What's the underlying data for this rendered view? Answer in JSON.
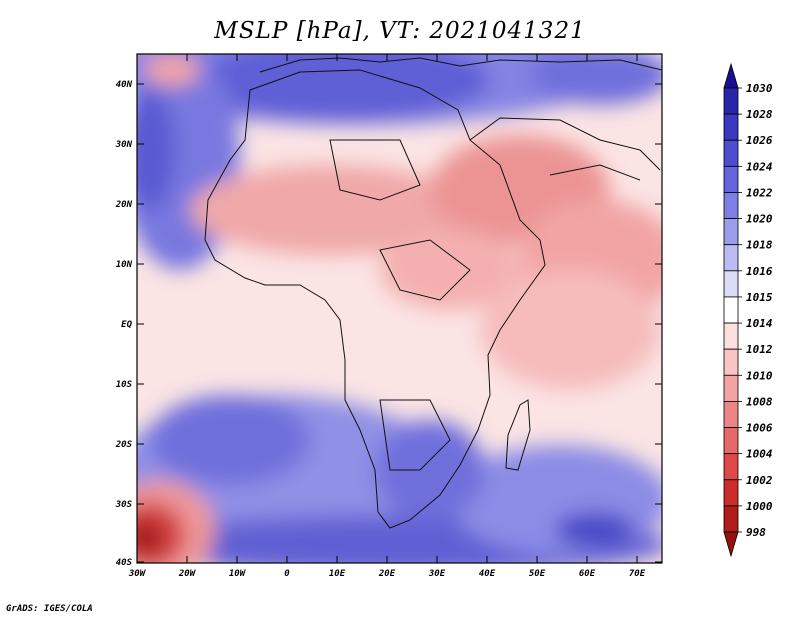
{
  "title": "MSLP [hPa], VT: 2021041321",
  "credit": "GrADS: IGES/COLA",
  "map": {
    "lat_labels": [
      "40N",
      "30N",
      "20N",
      "10N",
      "EQ",
      "10S",
      "20S",
      "30S",
      "40S"
    ],
    "lon_labels": [
      "30W",
      "20W",
      "10W",
      "0",
      "10E",
      "20E",
      "30E",
      "40E",
      "50E",
      "60E",
      "70E"
    ]
  },
  "colorbar": {
    "levels": [
      "1030",
      "1028",
      "1026",
      "1024",
      "1022",
      "1020",
      "1018",
      "1016",
      "1015",
      "1014",
      "1012",
      "1010",
      "1008",
      "1006",
      "1004",
      "1002",
      "1000",
      "998"
    ],
    "colors": [
      "#1a0f90",
      "#2a24a8",
      "#3a38c0",
      "#4d4dd0",
      "#6464dc",
      "#7e7ee4",
      "#9c9cec",
      "#bcbcf2",
      "#dcdcf8",
      "#ffffff",
      "#fce0e0",
      "#f8c4c4",
      "#f2a4a4",
      "#ec8686",
      "#e66868",
      "#de4848",
      "#cc2c2c",
      "#b01c1c",
      "#961010"
    ]
  }
}
